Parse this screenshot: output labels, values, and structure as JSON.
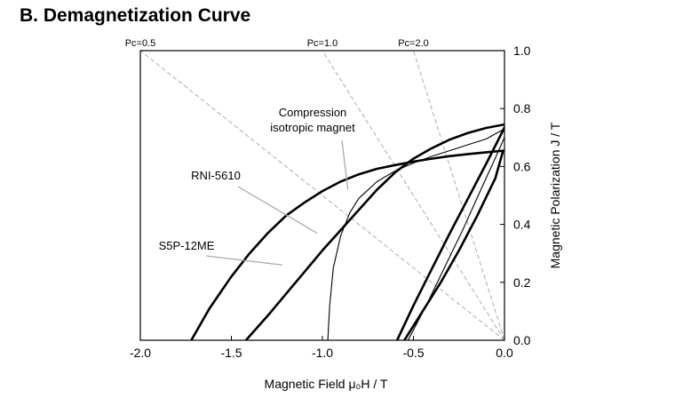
{
  "header": {
    "title": "B. Demagnetization Curve"
  },
  "chart_data": {
    "type": "line",
    "title": "B. Demagnetization Curve",
    "xlabel": "Magnetic Field μ₀H / T",
    "ylabel": "Magnetic Polarization J / T",
    "xlim": [
      -2.0,
      0.0
    ],
    "ylim": [
      0.0,
      1.0
    ],
    "xticks": [
      -2.0,
      -1.5,
      -1.0,
      -0.5,
      0.0
    ],
    "xtick_labels": [
      "-2.0",
      "-1.5",
      "-1.0",
      "-0.5",
      "0.0"
    ],
    "yticks": [
      0.0,
      0.2,
      0.4,
      0.6,
      0.8,
      1.0
    ],
    "ytick_labels": [
      "0.0",
      "0.2",
      "0.4",
      "0.6",
      "0.8",
      "1.0"
    ],
    "y_axis_side": "right",
    "grid": false,
    "legend": "none",
    "load_lines": [
      {
        "label": "Pc=0.5",
        "slope": 0.5
      },
      {
        "label": "Pc=1.0",
        "slope": 1.0
      },
      {
        "label": "Pc=2.0",
        "slope": 2.0
      }
    ],
    "annotations": [
      {
        "lines": [
          "Compression",
          "isotropic magnet"
        ],
        "points_to": [
          -0.86,
          0.52
        ]
      },
      {
        "lines": [
          "RNI-5610"
        ],
        "points_to": [
          -1.03,
          0.37
        ]
      },
      {
        "lines": [
          "S5P-12ME"
        ],
        "points_to": [
          -1.22,
          0.26
        ]
      }
    ],
    "series": [
      {
        "style": "thick",
        "x": [
          -1.72,
          -1.62,
          -1.5,
          -1.4,
          -1.3,
          -1.2,
          -1.1,
          -1.0,
          -0.9,
          -0.8,
          -0.7,
          -0.6,
          -0.5,
          -0.4,
          -0.3,
          -0.2,
          -0.1,
          0.0
        ],
        "y": [
          0.0,
          0.11,
          0.22,
          0.3,
          0.37,
          0.43,
          0.475,
          0.515,
          0.548,
          0.573,
          0.592,
          0.605,
          0.617,
          0.627,
          0.636,
          0.643,
          0.649,
          0.655
        ]
      },
      {
        "style": "thick",
        "x": [
          -1.42,
          -1.3,
          -1.2,
          -1.1,
          -1.0,
          -0.9,
          -0.8,
          -0.7,
          -0.6,
          -0.5,
          -0.4,
          -0.3,
          -0.2,
          -0.1,
          0.0
        ],
        "y": [
          0.0,
          0.085,
          0.16,
          0.235,
          0.31,
          0.38,
          0.45,
          0.52,
          0.58,
          0.627,
          0.663,
          0.693,
          0.716,
          0.733,
          0.745
        ]
      },
      {
        "style": "thin",
        "x": [
          -0.97,
          -0.96,
          -0.94,
          -0.9,
          -0.85,
          -0.8,
          -0.7,
          -0.6,
          -0.5,
          -0.4,
          -0.3,
          -0.2,
          -0.1,
          0.0
        ],
        "y": [
          0.0,
          0.12,
          0.25,
          0.36,
          0.44,
          0.49,
          0.548,
          0.585,
          0.612,
          0.635,
          0.655,
          0.675,
          0.695,
          0.73
        ]
      },
      {
        "style": "thick",
        "x": [
          -0.59,
          -0.5,
          -0.4,
          -0.3,
          -0.2,
          -0.1,
          -0.05,
          0.0
        ],
        "y": [
          0.0,
          0.12,
          0.245,
          0.37,
          0.49,
          0.61,
          0.672,
          0.735
        ]
      },
      {
        "style": "thick",
        "x": [
          -0.55,
          -0.45,
          -0.35,
          -0.25,
          -0.15,
          -0.05,
          -0.01
        ],
        "y": [
          0.0,
          0.1,
          0.2,
          0.31,
          0.43,
          0.56,
          0.65
        ]
      },
      {
        "style": "thin",
        "x": [
          -0.53,
          -0.43,
          -0.33,
          -0.23,
          -0.13,
          -0.05,
          0.0
        ],
        "y": [
          0.0,
          0.12,
          0.25,
          0.38,
          0.52,
          0.63,
          0.7
        ]
      }
    ]
  }
}
